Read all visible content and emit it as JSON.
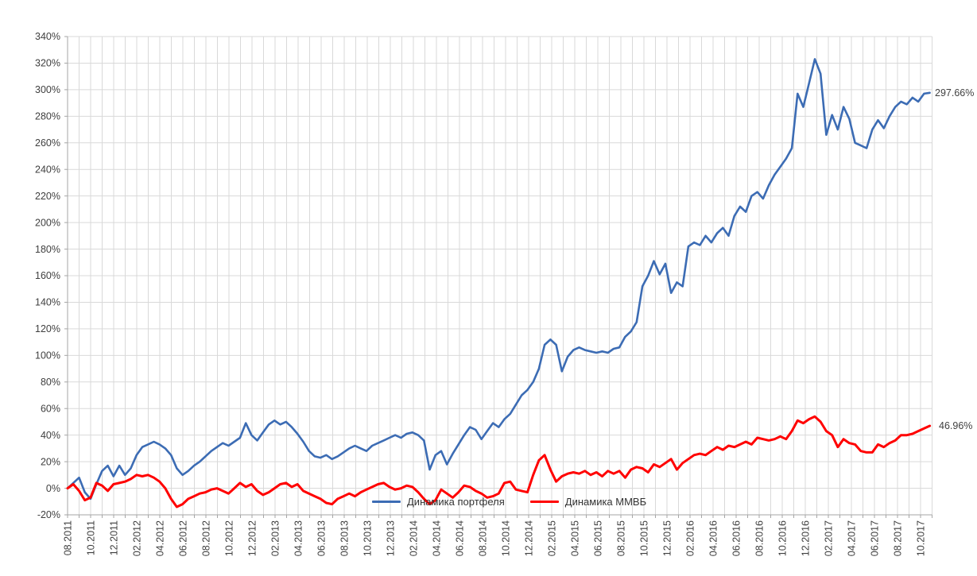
{
  "chart_data": {
    "type": "line",
    "title": "",
    "xlabel": "",
    "ylabel": "",
    "grid": true,
    "legend_position": "bottom-center-inside",
    "y_axis": {
      "min": -20,
      "max": 340,
      "step": 20,
      "tick_format": "percent"
    },
    "y_ticks": [
      "340%",
      "320%",
      "300%",
      "280%",
      "260%",
      "240%",
      "220%",
      "200%",
      "180%",
      "160%",
      "140%",
      "120%",
      "100%",
      "80%",
      "60%",
      "40%",
      "20%",
      "0%",
      "-20%"
    ],
    "x_labels": [
      "08.2011",
      "10.2011",
      "12.2011",
      "02.2012",
      "04.2012",
      "06.2012",
      "08.2012",
      "10.2012",
      "12.2012",
      "02.2013",
      "04.2013",
      "06.2013",
      "08.2013",
      "10.2013",
      "12.2013",
      "02.2014",
      "04.2014",
      "06.2014",
      "08.2014",
      "10.2014",
      "12.2014",
      "02.2015",
      "04.2015",
      "06.2015",
      "08.2015",
      "10.2015",
      "12.2015",
      "02.2016",
      "04.2016",
      "06.2016",
      "08.2016",
      "10.2016",
      "12.2016",
      "02.2017",
      "04.2017",
      "06.2017",
      "08.2017",
      "10.2017"
    ],
    "months_per_label": 2,
    "x_start_month": 0,
    "x_end_month": 74.8,
    "colors": {
      "grid": "#d9d9d9",
      "axis": "#a6a6a6",
      "text": "#3f3f3f"
    },
    "series": [
      {
        "name": "Динамика портфеля",
        "color": "#3c6cb4",
        "end_label": "297.66%",
        "end_value": 297.66,
        "values": [
          0,
          4,
          8,
          -3,
          -8,
          3,
          13,
          17,
          9,
          17,
          10,
          15,
          25,
          31,
          33,
          35,
          33,
          30,
          25,
          15,
          10,
          13,
          17,
          20,
          24,
          28,
          31,
          34,
          32,
          35,
          38,
          49,
          40,
          36,
          42,
          48,
          51,
          48,
          50,
          46,
          41,
          35,
          28,
          24,
          23,
          25,
          22,
          24,
          27,
          30,
          32,
          30,
          28,
          32,
          34,
          36,
          38,
          40,
          38,
          41,
          42,
          40,
          36,
          14,
          25,
          28,
          18,
          26,
          33,
          40,
          46,
          44,
          37,
          43,
          49,
          46,
          52,
          56,
          63,
          70,
          74,
          80,
          90,
          108,
          112,
          108,
          88,
          99,
          104,
          106,
          104,
          103,
          102,
          103,
          102,
          105,
          106,
          114,
          118,
          125,
          152,
          160,
          171,
          161,
          169,
          147,
          155,
          152,
          182,
          185,
          183,
          190,
          185,
          192,
          196,
          190,
          205,
          212,
          208,
          220,
          223,
          218,
          228,
          236,
          242,
          248,
          256,
          297,
          287,
          305,
          323,
          312,
          266,
          281,
          270,
          287,
          278,
          260,
          258,
          256,
          270,
          277,
          271,
          280,
          287,
          291,
          289,
          294,
          291,
          297,
          297.66
        ]
      },
      {
        "name": "Динамика ММВБ",
        "color": "#ff0000",
        "end_label": "46.96%",
        "end_value": 46.96,
        "values": [
          0,
          3,
          -2,
          -9,
          -7,
          4,
          2,
          -2,
          3,
          4,
          5,
          7,
          10,
          9,
          10,
          8,
          5,
          0,
          -8,
          -14,
          -12,
          -8,
          -6,
          -4,
          -3,
          -1,
          0,
          -2,
          -4,
          0,
          4,
          1,
          3,
          -2,
          -5,
          -3,
          0,
          3,
          4,
          1,
          3,
          -2,
          -4,
          -6,
          -8,
          -11,
          -12,
          -8,
          -6,
          -4,
          -6,
          -3,
          -1,
          1,
          3,
          4,
          1,
          -1,
          0,
          2,
          1,
          -3,
          -8,
          -12,
          -9,
          -1,
          -4,
          -7,
          -3,
          2,
          1,
          -2,
          -4,
          -7,
          -6,
          -4,
          4,
          5,
          -1,
          -2,
          -3,
          10,
          21,
          25,
          14,
          5,
          9,
          11,
          12,
          11,
          13,
          10,
          12,
          9,
          13,
          11,
          13,
          8,
          14,
          16,
          15,
          12,
          18,
          16,
          19,
          22,
          14,
          19,
          22,
          25,
          26,
          25,
          28,
          31,
          29,
          32,
          31,
          33,
          35,
          33,
          38,
          37,
          36,
          37,
          39,
          37,
          43,
          51,
          49,
          52,
          54,
          50,
          43,
          40,
          31,
          37,
          34,
          33,
          28,
          27,
          27,
          33,
          31,
          34,
          36,
          40,
          40,
          41,
          43,
          45,
          46.96
        ]
      }
    ]
  }
}
